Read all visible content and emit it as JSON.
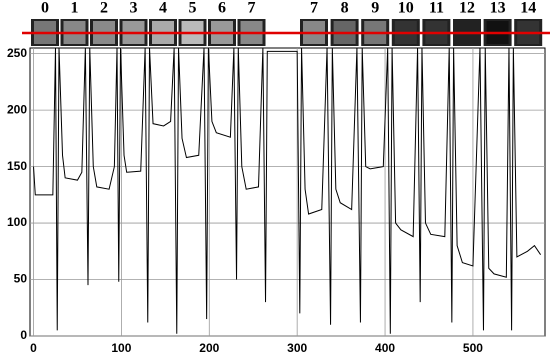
{
  "chart_data": {
    "type": "line",
    "x": [
      0,
      2,
      22,
      25,
      27,
      29,
      33,
      36,
      50,
      55,
      59,
      62,
      64,
      68,
      72,
      86,
      92,
      95,
      97,
      99,
      103,
      106,
      122,
      127,
      130,
      132,
      136,
      148,
      156,
      160,
      163,
      165,
      169,
      174,
      188,
      194,
      197,
      199,
      203,
      208,
      224,
      228,
      231,
      233,
      237,
      242,
      256,
      261,
      264,
      266,
      300,
      303,
      305,
      309,
      313,
      328,
      334,
      338,
      340,
      344,
      349,
      362,
      368,
      372,
      374,
      378,
      383,
      398,
      403,
      406,
      408,
      412,
      418,
      432,
      437,
      440,
      442,
      446,
      452,
      468,
      473,
      476,
      478,
      482,
      488,
      500,
      508,
      512,
      514,
      518,
      524,
      538,
      541,
      544,
      546,
      550,
      562,
      570,
      577
    ],
    "series": [
      {
        "color": "#000000",
        "values": [
          150,
          125,
          125,
          255,
          5,
          255,
          160,
          140,
          138,
          145,
          255,
          45,
          255,
          150,
          132,
          130,
          150,
          255,
          48,
          255,
          160,
          145,
          146,
          255,
          12,
          255,
          188,
          186,
          190,
          255,
          2,
          255,
          175,
          158,
          160,
          255,
          15,
          255,
          190,
          180,
          176,
          255,
          50,
          255,
          150,
          130,
          132,
          255,
          30,
          252,
          252,
          20,
          255,
          130,
          108,
          112,
          255,
          10,
          255,
          130,
          118,
          112,
          255,
          12,
          255,
          150,
          148,
          150,
          255,
          2,
          255,
          100,
          94,
          88,
          255,
          30,
          255,
          100,
          90,
          88,
          255,
          12,
          255,
          80,
          65,
          62,
          255,
          5,
          255,
          60,
          55,
          52,
          255,
          5,
          255,
          70,
          75,
          80,
          72
        ]
      }
    ],
    "xlim": [
      -4,
      582
    ],
    "ylim": [
      0,
      255
    ],
    "xticks": [
      0,
      100,
      200,
      300,
      400,
      500
    ],
    "yticks": [
      0,
      50,
      100,
      150,
      200,
      250
    ],
    "grid": true,
    "strip_labels": [
      "0",
      "1",
      "2",
      "3",
      "4",
      "5",
      "6",
      "7",
      "7",
      "8",
      "9",
      "10",
      "11",
      "12",
      "13",
      "14"
    ],
    "strip_colors": [
      "#777",
      "#888",
      "#8a8a8a",
      "#999",
      "#aaa",
      "#bbb",
      "#999",
      "#888",
      "#888",
      "#666",
      "#777",
      "#333",
      "#333",
      "#222",
      "#111",
      "#333"
    ]
  }
}
